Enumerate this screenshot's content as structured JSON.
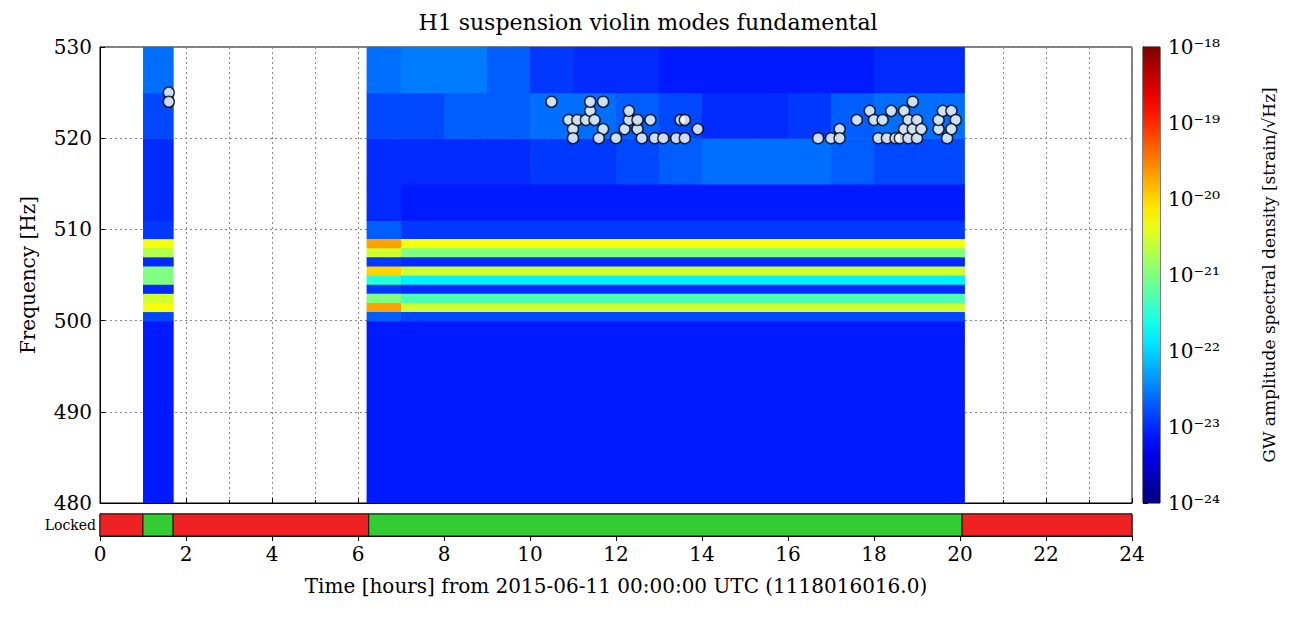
{
  "chart_data": {
    "type": "spectrogram",
    "title": "H1 suspension violin modes fundamental",
    "xlabel": "Time [hours] from 2015-06-11 00:00:00 UTC (1118016016.0)",
    "ylabel": "Frequency [Hz]",
    "xlim": [
      0,
      24
    ],
    "xticks": [
      0,
      2,
      4,
      6,
      8,
      10,
      12,
      14,
      16,
      18,
      20,
      22,
      24
    ],
    "ylim": [
      480,
      530
    ],
    "yticks": [
      480,
      490,
      500,
      510,
      520,
      530
    ],
    "grid": true,
    "heatmap": {
      "time_edges": [
        1.0,
        1.7,
        6.2,
        7,
        8,
        9,
        10,
        11,
        12,
        13,
        14,
        15,
        16,
        17,
        18,
        19,
        20,
        20.1
      ],
      "freq_edges": [
        480,
        500,
        501,
        502,
        503,
        504,
        505,
        506,
        507,
        508,
        509,
        511,
        515,
        520,
        525,
        530
      ],
      "values": [
        [
          8e-24,
          1.5e-23,
          5e-21,
          3e-21,
          1e-23,
          1e-21,
          1e-21,
          1e-23,
          2e-21,
          5e-21,
          1.2e-23,
          1e-23,
          1e-23,
          1.5e-23,
          2.5e-23
        ],
        null,
        [
          8e-24,
          2e-23,
          2e-20,
          1e-21,
          1.2e-23,
          3e-22,
          1e-20,
          1.2e-23,
          3e-21,
          2e-20,
          2e-23,
          1e-23,
          1e-23,
          1.5e-23,
          2.5e-23
        ],
        [
          8e-24,
          1.5e-23,
          3e-21,
          5e-22,
          1e-23,
          1.5e-22,
          3e-21,
          1e-23,
          1e-21,
          5e-21,
          1.2e-23,
          8e-24,
          1e-23,
          1.5e-23,
          3e-23
        ],
        [
          8e-24,
          1.5e-23,
          3e-21,
          5e-22,
          1e-23,
          1.5e-22,
          3e-21,
          1e-23,
          1e-21,
          5e-21,
          1.2e-23,
          8e-24,
          1e-23,
          2e-23,
          3e-23
        ],
        [
          8e-24,
          1.5e-23,
          3e-21,
          5e-22,
          1e-23,
          1.5e-22,
          3e-21,
          1e-23,
          1e-21,
          5e-21,
          1.2e-23,
          8e-24,
          1e-23,
          2e-23,
          2e-23
        ],
        [
          8e-24,
          1.5e-23,
          3e-21,
          5e-22,
          1e-23,
          1.5e-22,
          3e-21,
          1e-23,
          1e-21,
          5e-21,
          1.2e-23,
          8e-24,
          1.2e-23,
          2.5e-23,
          1.2e-23
        ],
        [
          8e-24,
          1.5e-23,
          3e-21,
          5e-22,
          1e-23,
          1.5e-22,
          3e-21,
          1e-23,
          1e-21,
          5e-21,
          1.2e-23,
          8e-24,
          1.2e-23,
          2.5e-23,
          1e-23
        ],
        [
          8e-24,
          1.5e-23,
          3e-21,
          5e-22,
          1e-23,
          1.5e-22,
          3e-21,
          1e-23,
          1e-21,
          5e-21,
          1.2e-23,
          8e-24,
          1.5e-23,
          2e-23,
          1e-23
        ],
        [
          8e-24,
          1.5e-23,
          3e-21,
          5e-22,
          1e-23,
          1.5e-22,
          3e-21,
          1e-23,
          1e-21,
          5e-21,
          1.2e-23,
          8e-24,
          2e-23,
          1.5e-23,
          8e-24
        ],
        [
          8e-24,
          1.5e-23,
          3e-21,
          5e-22,
          1e-23,
          1.5e-22,
          3e-21,
          1e-23,
          1e-21,
          5e-21,
          1.2e-23,
          8e-24,
          2.5e-23,
          1e-23,
          8e-24
        ],
        [
          8e-24,
          1.5e-23,
          3e-21,
          5e-22,
          1e-23,
          1.5e-22,
          3e-21,
          1e-23,
          1e-21,
          5e-21,
          1.2e-23,
          8e-24,
          2.5e-23,
          1e-23,
          8e-24
        ],
        [
          8e-24,
          1.5e-23,
          3e-21,
          5e-22,
          1e-23,
          1.5e-22,
          3e-21,
          1e-23,
          1e-21,
          5e-21,
          1.2e-23,
          8e-24,
          2.5e-23,
          1.2e-23,
          8e-24
        ],
        [
          8e-24,
          1.5e-23,
          3e-21,
          5e-22,
          1e-23,
          1.5e-22,
          3e-21,
          1e-23,
          1e-21,
          5e-21,
          1.2e-23,
          8e-24,
          2e-23,
          2e-23,
          8e-24
        ],
        [
          8e-24,
          1.5e-23,
          3e-21,
          5e-22,
          1e-23,
          1.5e-22,
          3e-21,
          1e-23,
          1e-21,
          5e-21,
          1.2e-23,
          8e-24,
          1.5e-23,
          2.5e-23,
          1e-23
        ],
        [
          8e-24,
          1.5e-23,
          3e-21,
          5e-22,
          1e-23,
          1.5e-22,
          3e-21,
          1e-23,
          1e-21,
          5e-21,
          1.2e-23,
          8e-24,
          1.5e-23,
          2.5e-23,
          1e-23
        ],
        [
          8e-24,
          1.5e-23,
          3e-21,
          5e-22,
          1e-23,
          1.5e-22,
          3e-21,
          1e-23,
          1e-21,
          5e-21,
          1.2e-23,
          8e-24,
          1.5e-23,
          2.5e-23,
          1e-23
        ]
      ]
    },
    "colorbar": {
      "label": "GW amplitude spectral density [strain/√Hz]",
      "lim": [
        1e-24,
        1e-18
      ],
      "log": true,
      "ticks": [
        {
          "value": 1e-24,
          "label": "10⁻²⁴"
        },
        {
          "value": 1e-23,
          "label": "10⁻²³"
        },
        {
          "value": 1e-22,
          "label": "10⁻²²"
        },
        {
          "value": 1e-21,
          "label": "10⁻²¹"
        },
        {
          "value": 1e-20,
          "label": "10⁻²⁰"
        },
        {
          "value": 1e-19,
          "label": "10⁻¹⁹"
        },
        {
          "value": 1e-18,
          "label": "10⁻¹⁸"
        }
      ]
    },
    "points": {
      "type": "scatter",
      "marker": "circle",
      "color": "#ffffff",
      "x": [
        1.6,
        1.6,
        10.5,
        10.9,
        11.0,
        11.0,
        11.1,
        11.3,
        11.4,
        11.4,
        11.5,
        11.7,
        11.7,
        11.6,
        12.0,
        12.2,
        12.3,
        12.3,
        12.5,
        12.5,
        12.6,
        12.8,
        12.9,
        13.1,
        13.4,
        13.5,
        13.6,
        13.6,
        13.9,
        16.7,
        17.0,
        17.2,
        17.2,
        17.6,
        17.9,
        18.0,
        18.1,
        18.2,
        18.3,
        18.4,
        18.5,
        18.6,
        18.7,
        18.7,
        18.8,
        18.8,
        18.9,
        18.9,
        19.0,
        19.0,
        19.1,
        19.5,
        19.5,
        19.6,
        19.7,
        19.8,
        19.9,
        19.8
      ],
      "y": [
        525,
        524,
        524,
        522,
        521,
        520,
        522,
        522,
        523,
        524,
        522,
        524,
        521,
        520,
        520,
        521,
        522,
        523,
        521,
        522,
        520,
        522,
        520,
        520,
        520,
        522,
        522,
        520,
        521,
        520,
        520,
        521,
        520,
        522,
        523,
        522,
        520,
        522,
        520,
        523,
        520,
        520,
        521,
        523,
        520,
        522,
        521,
        524,
        522,
        520,
        521,
        521,
        522,
        523,
        520,
        523,
        522,
        521
      ]
    },
    "locked": {
      "label": "Locked",
      "segments": [
        {
          "start": 0,
          "end": 1.0,
          "locked": false
        },
        {
          "start": 1.0,
          "end": 1.7,
          "locked": true
        },
        {
          "start": 1.7,
          "end": 6.25,
          "locked": false
        },
        {
          "start": 6.25,
          "end": 20.05,
          "locked": true
        },
        {
          "start": 20.05,
          "end": 24,
          "locked": false
        }
      ]
    }
  }
}
